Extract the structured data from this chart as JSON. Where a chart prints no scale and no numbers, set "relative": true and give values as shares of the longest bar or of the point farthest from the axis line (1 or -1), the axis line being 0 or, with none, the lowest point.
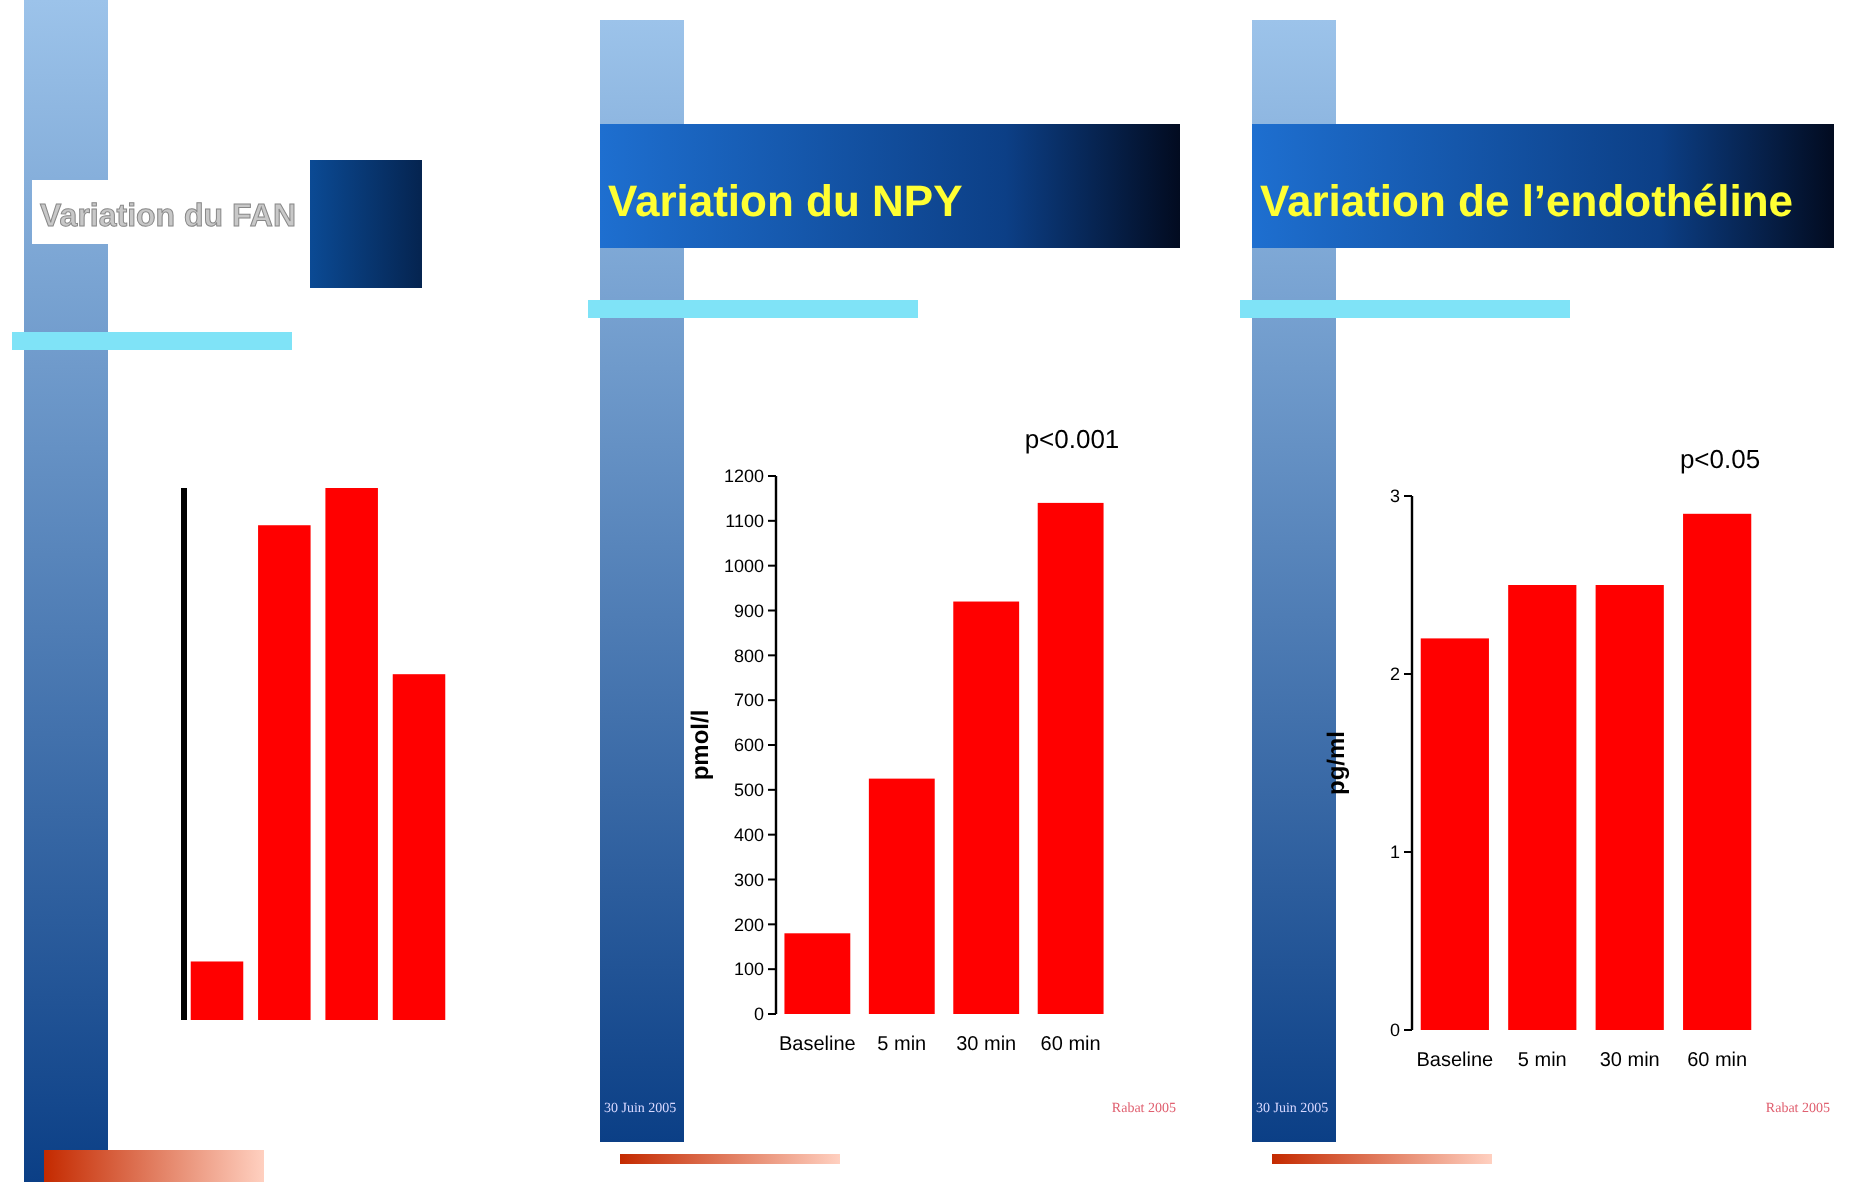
{
  "chart_data": [
    {
      "type": "bar",
      "title": "Variation du FAN",
      "categories": [
        null,
        null,
        null,
        null
      ],
      "values": [
        0.11,
        0.93,
        1,
        0.65
      ],
      "color": "#ff0000",
      "relative": true
    },
    {
      "type": "bar",
      "title": "Variation du NPY",
      "ylabel": "pmol/l",
      "categories": [
        "Baseline",
        "5 min",
        "30 min",
        "60 min"
      ],
      "values": [
        180,
        525,
        920,
        1140
      ],
      "color": "#ff0000",
      "ylim": [
        0,
        1200
      ],
      "yticks": [
        0,
        100,
        200,
        300,
        400,
        500,
        600,
        700,
        800,
        900,
        1000,
        1100,
        1200
      ],
      "annotations": [
        "p<0.001",
        "30 Juin 2005",
        "Rabat 2005"
      ]
    },
    {
      "type": "bar",
      "title": "Variation de l’endothéline",
      "ylabel": "pg/ml",
      "categories": [
        "Baseline",
        "5 min",
        "30 min",
        "60 min"
      ],
      "values": [
        2.2,
        2.5,
        2.5,
        2.9
      ],
      "color": "#ff0000",
      "ylim": [
        0,
        3
      ],
      "yticks": [
        0,
        1,
        2,
        3
      ],
      "annotations": [
        "p<0.05",
        "30 Juin 2005",
        "Rabat 2005"
      ]
    }
  ]
}
